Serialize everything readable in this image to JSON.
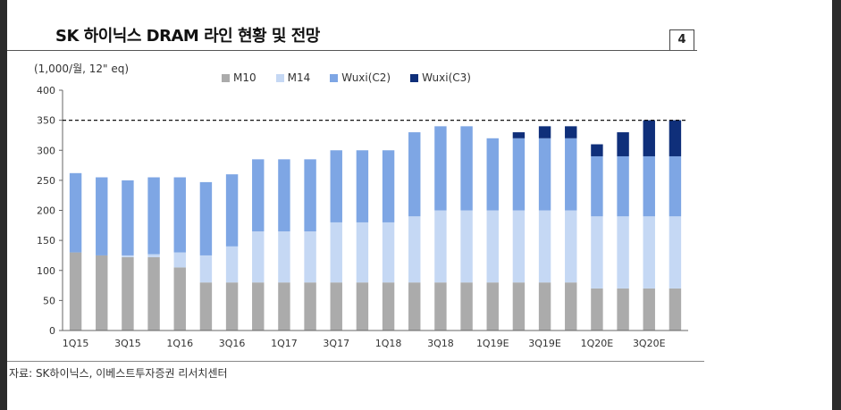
{
  "header": {
    "title": "SK 하이닉스 DRAM 라인 현황 및 전망",
    "page_number": "4"
  },
  "footer": {
    "source": "자료: SK하이닉스, 이베스트투자증권 리서치센터"
  },
  "colors": {
    "M10": "#ababab",
    "M14": "#c5d8f4",
    "Wuxi(C2)": "#7ea6e4",
    "Wuxi(C3)": "#0f2f7a"
  },
  "chart_data": {
    "type": "bar",
    "stacked": true,
    "unit_label": "(1,000/월, 12\" eq)",
    "categories": [
      "1Q15",
      "2Q15",
      "3Q15",
      "4Q15",
      "1Q16",
      "2Q16",
      "3Q16",
      "4Q16",
      "1Q17",
      "2Q17",
      "3Q17",
      "4Q17",
      "1Q18",
      "2Q18",
      "3Q18",
      "4Q18",
      "1Q19E",
      "2Q19E",
      "3Q19E",
      "4Q19E",
      "1Q20E",
      "2Q20E",
      "3Q20E",
      "4Q20E"
    ],
    "x_tick_labels": [
      "1Q15",
      "",
      "3Q15",
      "",
      "1Q16",
      "",
      "3Q16",
      "",
      "1Q17",
      "",
      "3Q17",
      "",
      "1Q18",
      "",
      "3Q18",
      "",
      "1Q19E",
      "",
      "3Q19E",
      "",
      "1Q20E",
      "",
      "3Q20E",
      ""
    ],
    "series": [
      {
        "name": "M10",
        "values": [
          130,
          125,
          122,
          122,
          105,
          80,
          80,
          80,
          80,
          80,
          80,
          80,
          80,
          80,
          80,
          80,
          80,
          80,
          80,
          80,
          70,
          70,
          70,
          70
        ]
      },
      {
        "name": "M14",
        "values": [
          0,
          0,
          3,
          5,
          25,
          45,
          60,
          85,
          85,
          85,
          100,
          100,
          100,
          110,
          120,
          120,
          120,
          120,
          120,
          120,
          120,
          120,
          120,
          120
        ]
      },
      {
        "name": "Wuxi(C2)",
        "values": [
          132,
          130,
          125,
          128,
          125,
          122,
          120,
          120,
          120,
          120,
          120,
          120,
          120,
          140,
          140,
          140,
          120,
          120,
          120,
          120,
          100,
          100,
          100,
          100
        ]
      },
      {
        "name": "Wuxi(C3)",
        "values": [
          0,
          0,
          0,
          0,
          0,
          0,
          0,
          0,
          0,
          0,
          0,
          0,
          0,
          0,
          0,
          0,
          0,
          10,
          20,
          20,
          20,
          40,
          60,
          60
        ]
      }
    ],
    "y_ticks": [
      0,
      50,
      100,
      150,
      200,
      250,
      300,
      350,
      400
    ],
    "ylim": [
      0,
      400
    ],
    "reference_line": 350,
    "legend_position": "top-center"
  }
}
